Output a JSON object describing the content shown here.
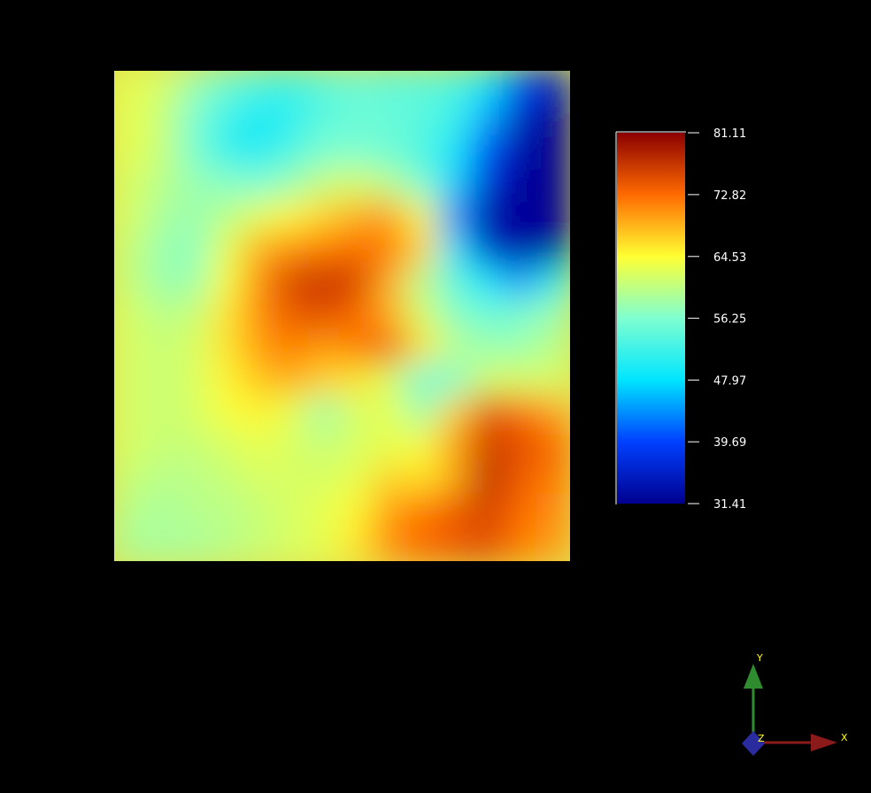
{
  "chart_data": {
    "type": "heatmap",
    "title": "",
    "xlabel": "",
    "ylabel": "",
    "background": "#000000",
    "colormap": "jet",
    "colorbar": {
      "min": 31.41,
      "max": 81.11,
      "ticks": [
        {
          "value": 81.11,
          "label": "81.11"
        },
        {
          "value": 72.82,
          "label": "72.82"
        },
        {
          "value": 64.53,
          "label": "64.53"
        },
        {
          "value": 56.25,
          "label": "56.25"
        },
        {
          "value": 47.97,
          "label": "47.97"
        },
        {
          "value": 39.69,
          "label": "39.69"
        },
        {
          "value": 31.41,
          "label": "31.41"
        }
      ],
      "colors": [
        {
          "value": 31.41,
          "color": "#00008f"
        },
        {
          "value": 39.69,
          "color": "#0040ff"
        },
        {
          "value": 47.97,
          "color": "#00e5ff"
        },
        {
          "value": 56.25,
          "color": "#7fffd0"
        },
        {
          "value": 64.53,
          "color": "#ffff33"
        },
        {
          "value": 72.82,
          "color": "#ff6a00"
        },
        {
          "value": 81.11,
          "color": "#8b0000"
        }
      ]
    },
    "field": {
      "columns": 14,
      "rows": 15,
      "values": [
        [
          63,
          62,
          58,
          55,
          53,
          52,
          54,
          55,
          54,
          54,
          53,
          48,
          40,
          35
        ],
        [
          63,
          61,
          56,
          52,
          49,
          51,
          54,
          55,
          55,
          54,
          52,
          45,
          35,
          32
        ],
        [
          63,
          61,
          56,
          51,
          50,
          53,
          56,
          56,
          55,
          53,
          49,
          40,
          33,
          32
        ],
        [
          62,
          60,
          58,
          57,
          56,
          58,
          61,
          62,
          60,
          56,
          47,
          37,
          32,
          32
        ],
        [
          62,
          59,
          58,
          60,
          63,
          65,
          67,
          69,
          70,
          64,
          43,
          33,
          32,
          32
        ],
        [
          61,
          58,
          57,
          63,
          69,
          71,
          72,
          73,
          72,
          67,
          48,
          36,
          33,
          33
        ],
        [
          61,
          58,
          58,
          64,
          71,
          76,
          77,
          76,
          69,
          60,
          54,
          48,
          44,
          50
        ],
        [
          62,
          60,
          61,
          66,
          71,
          74,
          75,
          73,
          69,
          62,
          57,
          55,
          56,
          58
        ],
        [
          62,
          61,
          62,
          66,
          70,
          72,
          70,
          72,
          74,
          66,
          60,
          58,
          58,
          60
        ],
        [
          62,
          61,
          62,
          65,
          68,
          69,
          67,
          66,
          62,
          55,
          56,
          62,
          62,
          62
        ],
        [
          62,
          61,
          62,
          64,
          65,
          63,
          58,
          62,
          63,
          58,
          67,
          75,
          73,
          70
        ],
        [
          62,
          61,
          61,
          62,
          63,
          62,
          61,
          62,
          63,
          64,
          70,
          76,
          75,
          73
        ],
        [
          61,
          60,
          60,
          61,
          62,
          62,
          62,
          63,
          67,
          66,
          69,
          78,
          74,
          72
        ],
        [
          60,
          59,
          60,
          60,
          61,
          62,
          63,
          65,
          70,
          72,
          74,
          76,
          73,
          71
        ],
        [
          59,
          59,
          59,
          60,
          61,
          62,
          63,
          66,
          71,
          73,
          74,
          75,
          72,
          70
        ]
      ]
    },
    "axes_triad": {
      "x_label": "X",
      "y_label": "Y",
      "z_label": "Z",
      "x_color": "#8b1a1a",
      "y_color": "#2e8b2e",
      "z_color": "#2b2ba0",
      "label_color": "#ffff00"
    }
  }
}
